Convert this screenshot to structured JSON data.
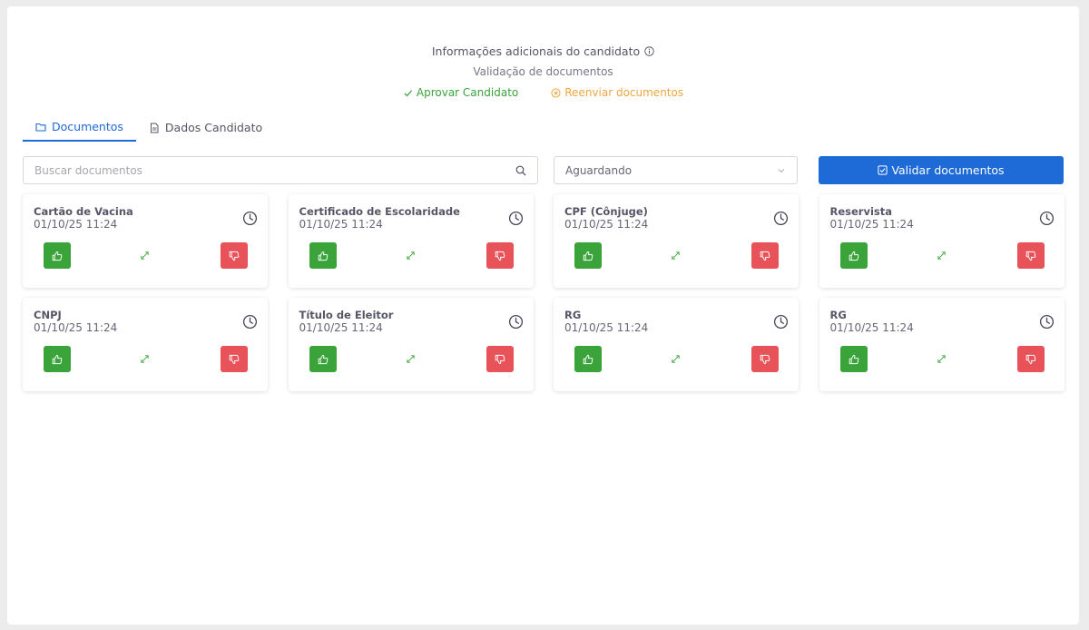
{
  "header": {
    "title": "Informações adicionais do candidato",
    "subtitle": "Validação de documentos",
    "approve_label": "Aprovar Candidato",
    "resend_label": "Reenviar documentos"
  },
  "tabs": [
    {
      "label": "Documentos",
      "icon": "folder-icon",
      "active": true
    },
    {
      "label": "Dados Candidato",
      "icon": "document-icon",
      "active": false
    }
  ],
  "search": {
    "placeholder": "Buscar documentos",
    "value": ""
  },
  "filter": {
    "selected": "Aguardando"
  },
  "validate_button": {
    "label": "Validar documentos"
  },
  "colors": {
    "primary": "#1e6ad6",
    "approve": "#3aa33a",
    "reject": "#e8535a",
    "resend": "#f0a640"
  },
  "documents": [
    {
      "title": "Cartão de Vacina",
      "date": "01/10/25 11:24"
    },
    {
      "title": "Certificado de Escolaridade",
      "date": "01/10/25 11:24"
    },
    {
      "title": "CPF (Cônjuge)",
      "date": "01/10/25 11:24"
    },
    {
      "title": "Reservista",
      "date": "01/10/25 11:24"
    },
    {
      "title": "CNPJ",
      "date": "01/10/25 11:24"
    },
    {
      "title": "Título de Eleitor",
      "date": "01/10/25 11:24"
    },
    {
      "title": "RG",
      "date": "01/10/25 11:24"
    },
    {
      "title": "RG",
      "date": "01/10/25 11:24"
    }
  ]
}
